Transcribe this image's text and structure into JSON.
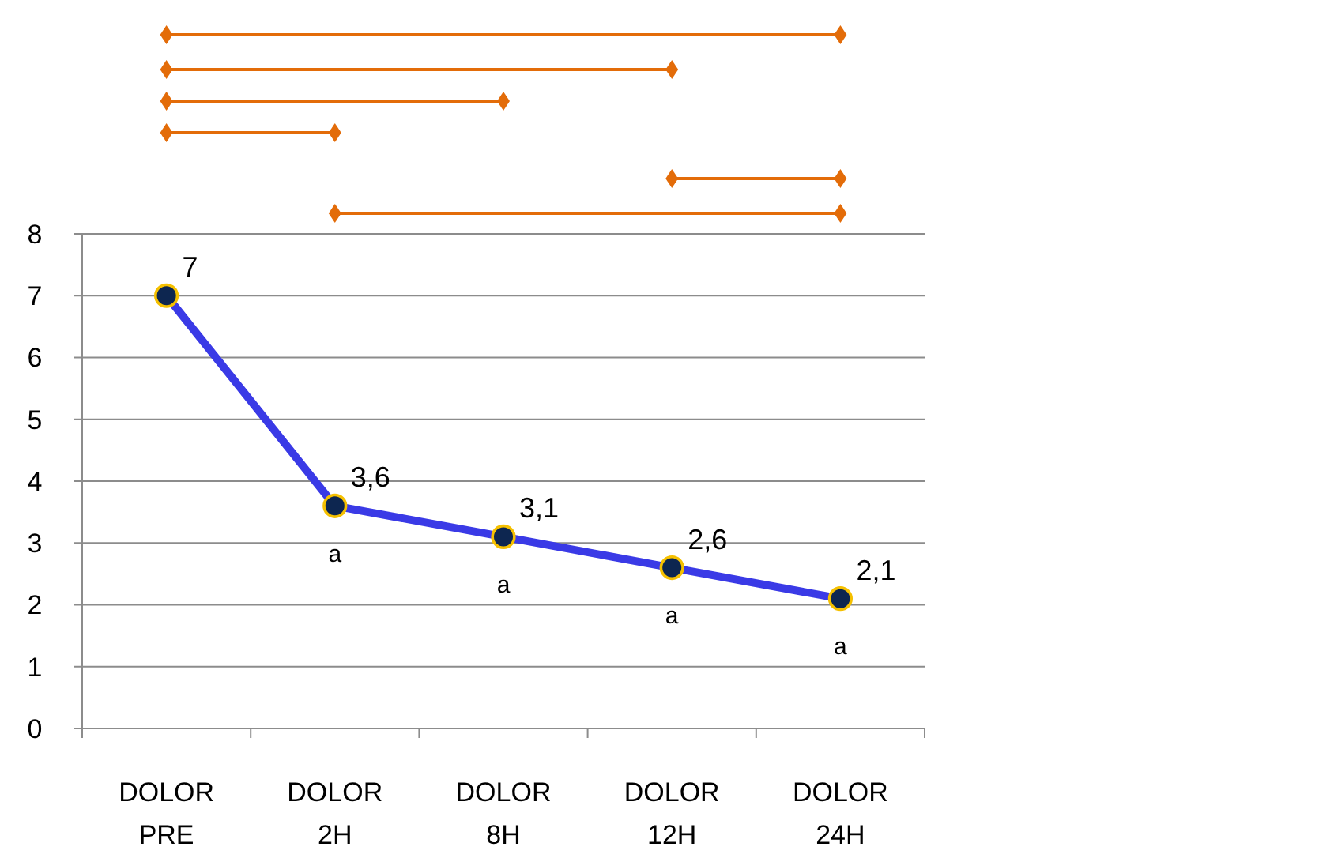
{
  "chart_data": {
    "type": "line",
    "categories": [
      "DOLOR PRE",
      "DOLOR 2H",
      "DOLOR 8H",
      "DOLOR 12H",
      "DOLOR 24H"
    ],
    "series": [
      {
        "color": "#3a3ae6",
        "values": [
          7,
          3.6,
          3.1,
          2.6,
          2.1
        ],
        "value_labels": [
          "7",
          "3,6",
          "3,1",
          "2,6",
          "2,1"
        ]
      }
    ],
    "ylim": [
      0,
      8
    ],
    "yticks": [
      0,
      1,
      2,
      3,
      4,
      5,
      6,
      7,
      8
    ],
    "grid": "y",
    "marker": "circle",
    "line_style": "solid",
    "annotations": [
      {
        "text": "a",
        "x": "DOLOR 2H",
        "y": 3.6
      },
      {
        "text": "a",
        "x": "DOLOR 8H",
        "y": 3.1
      },
      {
        "text": "a",
        "x": "DOLOR 12H",
        "y": 2.6
      },
      {
        "text": "a",
        "x": "DOLOR 24H",
        "y": 2.1
      }
    ]
  }
}
